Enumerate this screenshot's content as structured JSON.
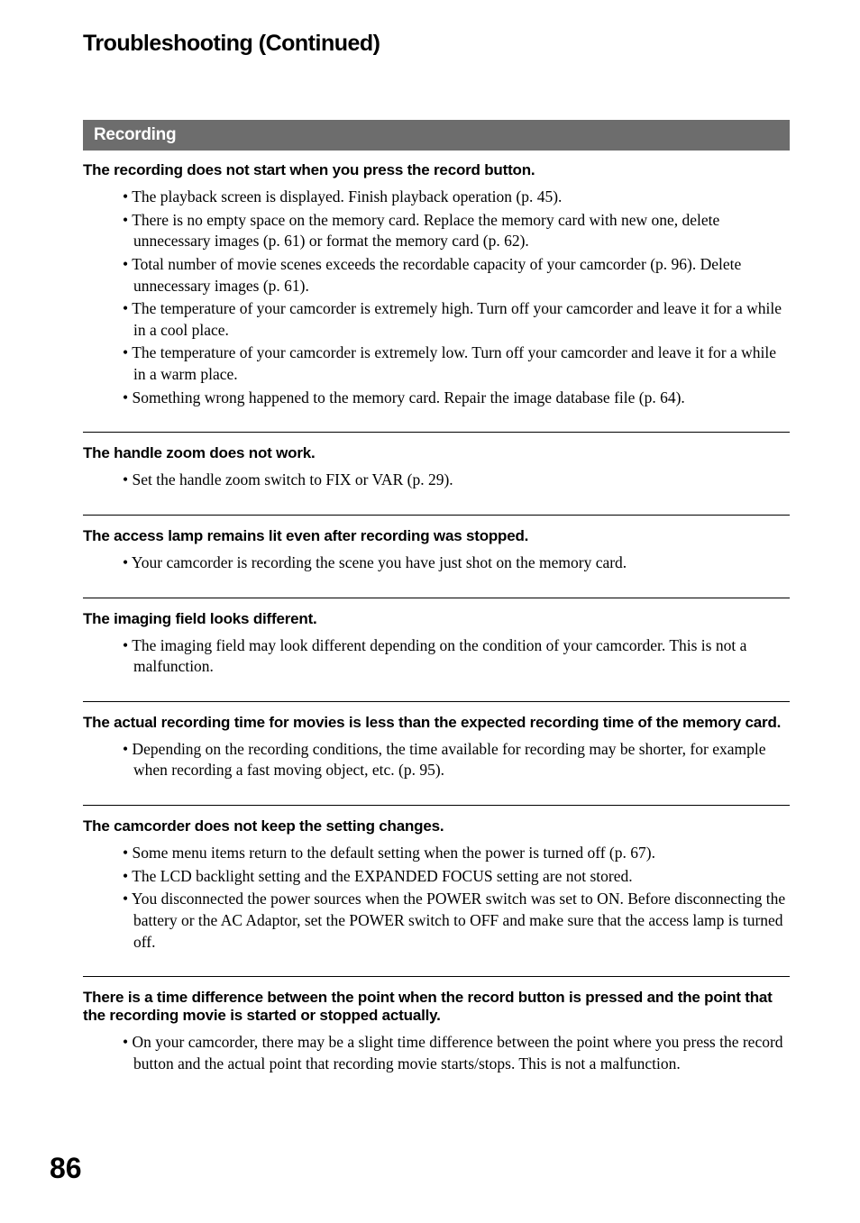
{
  "colors": {
    "page_bg": "#ffffff",
    "text": "#000000",
    "section_header_bg": "#6d6d6d",
    "section_header_text": "#ffffff",
    "divider": "#000000"
  },
  "typography": {
    "page_title_font": "Arial",
    "page_title_size_pt": 18,
    "page_title_weight": "bold",
    "section_header_size_pt": 14,
    "section_header_weight": "bold",
    "subhead_size_pt": 13,
    "subhead_weight": "bold",
    "body_font": "Times New Roman",
    "body_size_pt": 13,
    "page_number_size_pt": 24,
    "page_number_weight": "bold"
  },
  "page_title": "Troubleshooting (Continued)",
  "section_header": "Recording",
  "items": [
    {
      "heading": "The recording does not start when you press the record button.",
      "bullets": [
        "The playback screen is displayed. Finish playback operation (p. 45).",
        "There is no empty space on the memory card. Replace the memory card with new one, delete unnecessary images (p. 61) or format the memory card (p. 62).",
        "Total number of movie scenes exceeds the recordable capacity of your camcorder (p. 96). Delete unnecessary images (p. 61).",
        "The temperature of your camcorder is extremely high. Turn off your camcorder and leave it for a while in a cool place.",
        "The temperature of your camcorder is extremely low. Turn off your camcorder and leave it for a while in a warm place.",
        "Something wrong happened to the memory card. Repair the image database file (p. 64)."
      ]
    },
    {
      "heading": "The handle zoom does not work.",
      "bullets": [
        "Set the handle zoom switch to FIX or VAR (p. 29)."
      ]
    },
    {
      "heading": "The access lamp remains lit even after recording was stopped.",
      "bullets": [
        "Your camcorder is recording the scene you have just shot on the memory card."
      ]
    },
    {
      "heading": "The imaging field looks different.",
      "bullets": [
        "The imaging field may look different depending on the condition of your camcorder. This is not a malfunction."
      ]
    },
    {
      "heading": "The actual recording time for movies is less than the expected recording time of the memory card.",
      "bullets": [
        "Depending on the recording conditions, the time available for recording may be shorter, for example when recording a fast moving object, etc. (p. 95)."
      ]
    },
    {
      "heading": "The camcorder does not keep the setting changes.",
      "bullets": [
        "Some menu items return to the default setting when the power is turned off (p. 67).",
        "The LCD backlight setting and the EXPANDED FOCUS setting are not stored.",
        "You disconnected the power sources when the POWER switch was set to ON. Before disconnecting the battery or the AC Adaptor, set the POWER switch to OFF and make sure that the access lamp is turned off."
      ]
    },
    {
      "heading": "There is a time difference between the point when the record button is pressed and the point that the recording movie is started or stopped actually.",
      "bullets": [
        "On your camcorder, there may be a slight time difference between the point where you press the record button and the actual point that recording movie starts/stops. This is not a malfunction."
      ]
    }
  ],
  "page_number": "86"
}
